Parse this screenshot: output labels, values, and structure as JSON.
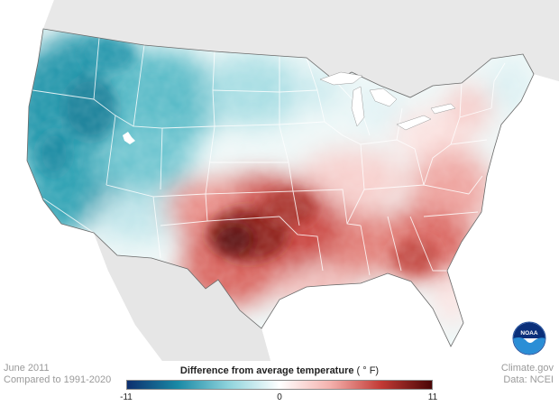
{
  "map": {
    "subject": "contiguous-united-states",
    "colors": {
      "background_land": "#dcdcdc",
      "ocean": "#ffffff",
      "state_borders": "#ffffff",
      "outline": "#6a6a6a"
    }
  },
  "legend": {
    "title": "Difference from average temperature",
    "unit": "( ° F)",
    "min_label": "-11",
    "mid_label": "0",
    "max_label": "11",
    "range": [
      -11,
      11
    ],
    "colors": [
      "#0d2f6e",
      "#1a8aa6",
      "#8fd3dc",
      "#ffffff",
      "#f4b1ad",
      "#c23a35",
      "#4a0606"
    ]
  },
  "footer_left": {
    "line1": "June 2011",
    "line2": "Compared to 1991-2020"
  },
  "footer_right": {
    "line1": "Climate.gov",
    "line2": "Data: NCEI"
  },
  "logo": {
    "text": "NOAA",
    "icon": "noaa-logo-icon"
  }
}
